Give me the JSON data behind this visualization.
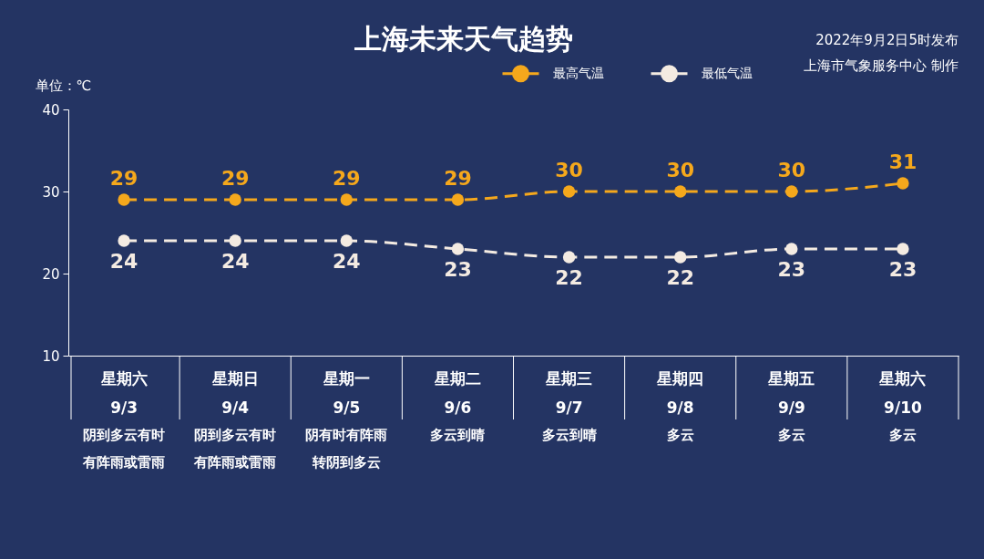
{
  "chart_data": {
    "type": "line",
    "title": "上海未来天气趋势",
    "ylabel": "单位：℃",
    "categories": [
      "星期六\n9/3",
      "星期日\n9/4",
      "星期一\n9/5",
      "星期二\n9/6",
      "星期三\n9/7",
      "星期四\n9/8",
      "星期五\n9/9",
      "星期六\n9/10"
    ],
    "series": [
      {
        "name": "最高气温",
        "color": "#f5a81c",
        "values": [
          29,
          29,
          29,
          29,
          30,
          30,
          30,
          31
        ]
      },
      {
        "name": "最低气温",
        "color": "#f4ebe2",
        "values": [
          24,
          24,
          24,
          23,
          22,
          22,
          23,
          23
        ]
      }
    ],
    "ylim": [
      10,
      40
    ],
    "yticks": [
      10,
      20,
      30,
      40
    ],
    "legend": "top",
    "marker": "circle",
    "line_style": "dashed",
    "data_labels": true,
    "annotations": [
      "2022年9月2日5时发布",
      "上海市气象服务中心 制作",
      "阴到多云有时有阵雨或雷雨",
      "阴到多云有时有阵雨或雷雨",
      "阴有时有阵雨转阴到多云",
      "多云到晴",
      "多云到晴",
      "多云",
      "多云",
      "多云"
    ]
  }
}
